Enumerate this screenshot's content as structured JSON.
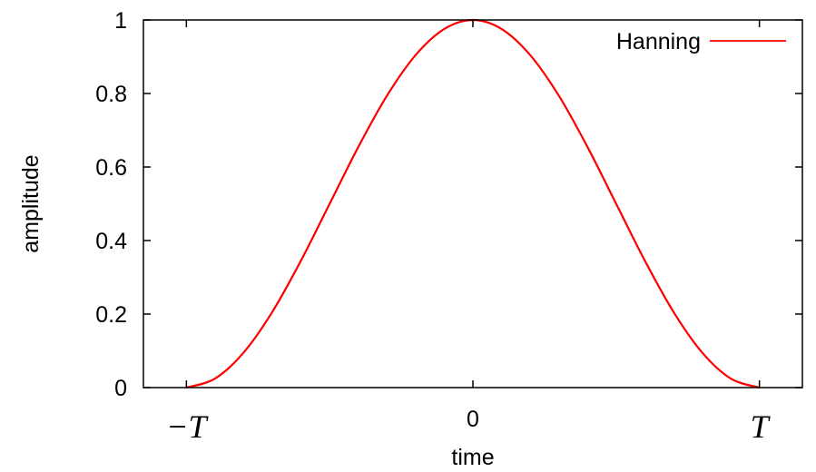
{
  "chart_data": {
    "type": "line",
    "title": "",
    "xlabel": "time",
    "ylabel": "amplitude",
    "xlim": [
      -1.15,
      1.15
    ],
    "ylim": [
      0,
      1
    ],
    "grid": false,
    "legend_position": "top-right",
    "x_ticks": [
      {
        "value": -1,
        "label": "−T",
        "style": "math"
      },
      {
        "value": 0,
        "label": "0",
        "style": "number"
      },
      {
        "value": 1,
        "label": "T",
        "style": "math"
      }
    ],
    "y_ticks": [
      {
        "value": 0,
        "label": "0"
      },
      {
        "value": 0.2,
        "label": "0.2"
      },
      {
        "value": 0.4,
        "label": "0.4"
      },
      {
        "value": 0.6,
        "label": "0.6"
      },
      {
        "value": 0.8,
        "label": "0.8"
      },
      {
        "value": 1,
        "label": "1"
      }
    ],
    "series": [
      {
        "name": "Hanning",
        "color": "#ff0000",
        "x": [
          -1,
          -0.9,
          -0.8,
          -0.7,
          -0.6,
          -0.5,
          -0.4,
          -0.3,
          -0.2,
          -0.1,
          0,
          0.1,
          0.2,
          0.3,
          0.4,
          0.5,
          0.6,
          0.7,
          0.8,
          0.9,
          1
        ],
        "y": [
          0,
          0.0245,
          0.0955,
          0.2061,
          0.3455,
          0.5,
          0.6545,
          0.7939,
          0.9045,
          0.9755,
          1,
          0.9755,
          0.9045,
          0.7939,
          0.6545,
          0.5,
          0.3455,
          0.2061,
          0.0955,
          0.0245,
          0
        ]
      }
    ]
  }
}
